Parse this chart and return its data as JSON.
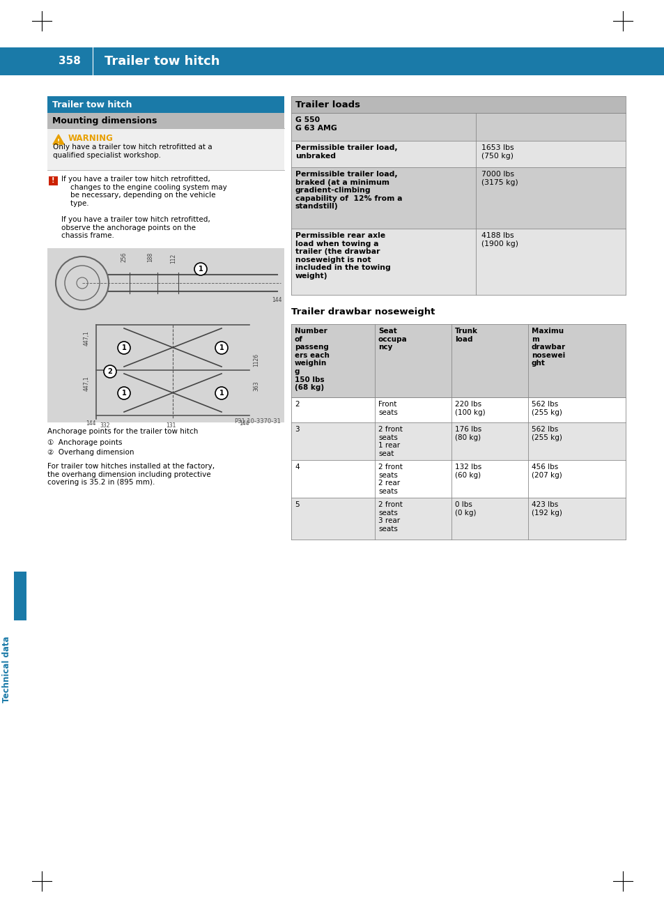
{
  "header_bg": "#1a7aa8",
  "page_bg": "#ffffff",
  "left_section_title_bg": "#1a7aa8",
  "mounting_dimensions_bg": "#b8b8b8",
  "warning_bg": "#efefef",
  "trailer_loads_header_bg": "#b8b8b8",
  "trailer_loads_rows": [
    {
      "label": "G 550\nG 63 AMG",
      "value": "",
      "label_bold": true,
      "bg": "#cccccc"
    },
    {
      "label": "Permissible trailer load,\nunbraked",
      "value": "1653 lbs\n(750 kg)",
      "label_bold": true,
      "bg": "#e4e4e4"
    },
    {
      "label": "Permissible trailer load,\nbraked (at a minimum\ngradient-climbing\ncapability of  12% from a\nstandstill)",
      "value": "7000 lbs\n(3175 kg)",
      "label_bold": true,
      "bg": "#cccccc"
    },
    {
      "label": "Permissible rear axle\nload when towing a\ntrailer (the drawbar\nnoseweight is not\nincluded in the towing\nweight)",
      "value": "4188 lbs\n(1900 kg)",
      "label_bold": true,
      "bg": "#e4e4e4"
    }
  ],
  "drawbar_header": [
    "Number\nof\npasseng\ners each\nweighin\ng\n150 lbs\n(68 kg)",
    "Seat\noccupa\nncy",
    "Trunk\nload",
    "Maximu\nm\ndrawbar\nnosewei\nght"
  ],
  "drawbar_rows": [
    {
      "num": "2",
      "seat": "Front\nseats",
      "trunk": "220 lbs\n(100 kg)",
      "max": "562 lbs\n(255 kg)",
      "bg": "#ffffff"
    },
    {
      "num": "3",
      "seat": "2 front\nseats\n1 rear\nseat",
      "trunk": "176 lbs\n(80 kg)",
      "max": "562 lbs\n(255 kg)",
      "bg": "#e4e4e4"
    },
    {
      "num": "4",
      "seat": "2 front\nseats\n2 rear\nseats",
      "trunk": "132 lbs\n(60 kg)",
      "max": "456 lbs\n(207 kg)",
      "bg": "#ffffff"
    },
    {
      "num": "5",
      "seat": "2 front\nseats\n3 rear\nseats",
      "trunk": "0 lbs\n(0 kg)",
      "max": "423 lbs\n(192 kg)",
      "bg": "#e4e4e4"
    }
  ],
  "image_bg": "#d5d5d5",
  "blue_bar_color": "#1a7aa8"
}
